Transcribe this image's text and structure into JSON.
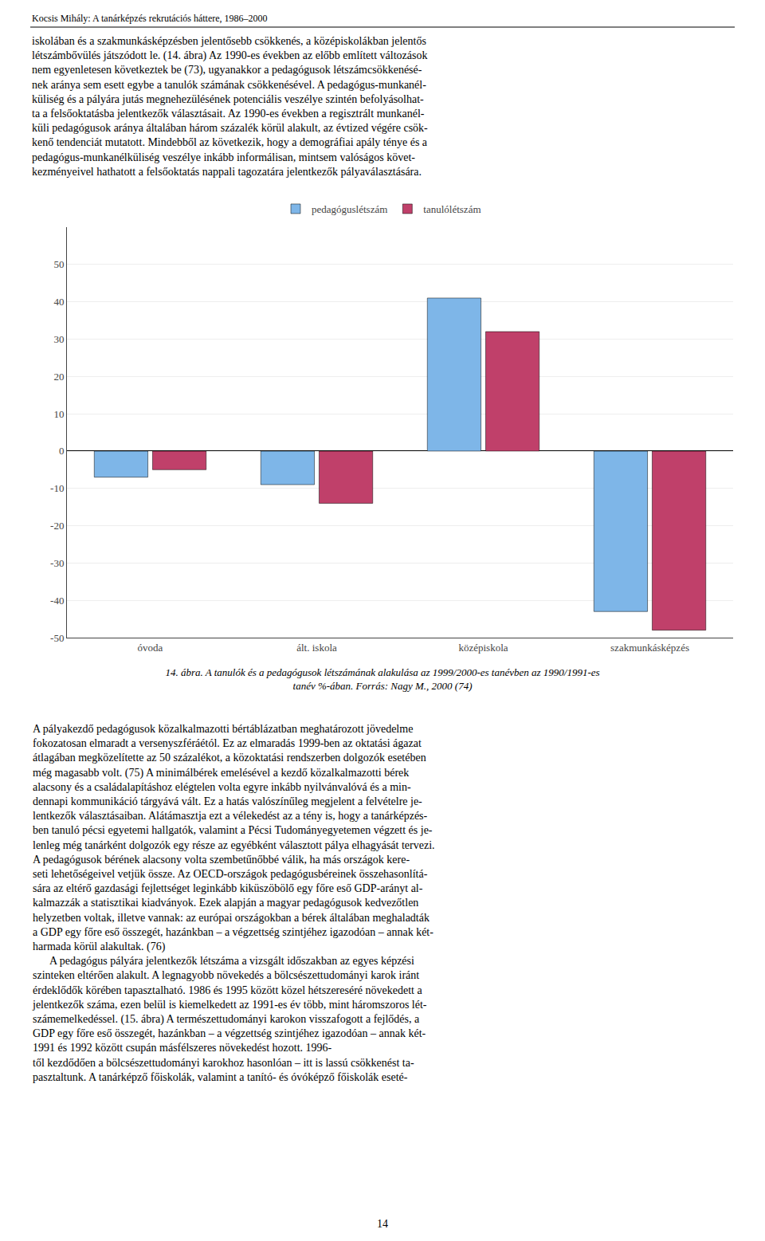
{
  "chart_data": {
    "type": "bar",
    "title": "14. ábra. A tanulók és a pedagógusok létszámának alakulása az 1999/2000-es tanévben az 1990/1991-es\ntanév %-ában. Forrás: Nagy M., 2000 (74)",
    "categories": [
      "óvoda",
      "ált. iskola",
      "középiskola",
      "szakmunkásképzés"
    ],
    "series": [
      {
        "name": "pedagóguslétszám",
        "color": "#7EB6E8",
        "values": [
          -7,
          -9,
          41,
          -43
        ]
      },
      {
        "name": "tanulólétszám",
        "color": "#C0406A",
        "values": [
          -5,
          -14,
          32,
          -48
        ]
      }
    ],
    "ylim": [
      -50,
      60
    ],
    "yticks": [
      -50,
      -40,
      -30,
      -20,
      -10,
      0,
      10,
      20,
      30,
      40,
      50
    ],
    "grid": true,
    "legend": "top",
    "annotations": [
      "Kocsis Mihály: A tanárképzés rekrutációs háttere, 1986–2000",
      "iskolában és a szakmunkásképzésben jelentősebb csökkenés, a középiskolákban jelentős\nlétszámbővülés játszódott le. (14. ábra) Az 1990-es években az előbb említett változások\nnem egyenletesen következtek be (73), ugyanakkor a pedagógusok létszámcsökkenésé-\nnek aránya sem esett egybe a tanulók számának csökkenésével. A pedagógus-munkanél-\nküliség és a pályára jutás megnehezülésének potenciális veszélye szintén befolyásolhat-\nta a felsőoktatásba jelentkezők választásait. Az 1990-es években a regisztrált munkanél-\nküli pedagógusok aránya általában három százalék körül alakult, az évtized végére csök-\nkenő tendenciát mutatott. Mindebből az következik, hogy a demográfiai apály ténye és a\npedagógus-munkanélküliség veszélye inkább informálisan, mintsem valóságos követ-\nkezményeivel hathatott a felsőoktatás nappali tagozatára jelentkezők pályaválasztására.",
      "A pályakezdő pedagógusok közalkalmazotti bértáblázatban meghatározott jövedelme\nfokozatosan elmaradt a versenyszféráétól. Ez az elmaradás 1999-ben az oktatási ágazat\nátlagában megközelítette az 50 százalékot, a közoktatási rendszerben dolgozók esetében\nmég magasabb volt. (75) A minimálbérek emelésével a kezdő közalkalmazotti bérek\nalacsony és a családalapításhoz elégtelen volta egyre inkább nyilvánvalóvá és a min-\ndennapi kommunikáció tárgyává vált. Ez a hatás valószínűleg megjelent a felvételre je-\nlentkezők választásaiban. Alátámasztja ezt a vélekedést az a tény is, hogy a tanárképzés-\nben tanuló pécsi egyetemi hallgatók, valamint a Pécsi Tudományegyetemen végzett és je-\nlenleg még tanárként dolgozók egy része az egyébként választott pálya elhagyását tervezi.\nA pedagógusok bérének alacsony volta szembetűnőbbé válik, ha más országok kere-\nseti lehetőségeivel vetjük össze. Az OECD-országok pedagógusbéreinek összehasonlítá-\nsára az eltérő gazdasági fejlettséget leginkább kiküszöbölő egy főre eső GDP-arányt al-\nkalmazzák a statisztikai kiadványok. Ezek alapján a magyar pedagógusok kedvezőtlen\nhelyzetben voltak, illetve vannak: az európai országokban a bérek általában meghaladták\na GDP egy főre eső összegét, hazánkban – a végzettség szintjéhez igazodóan – annak két-\nharmada körül alakultak. (76)\n      A pedagógus pályára jelentkezők létszáma a vizsgált időszakban az egyes képzési\nszinteken eltérően alakult. A legnagyobb növekedés a bölcsészettudományi karok iránt\nérdeklődők körében tapasztalható. 1986 és 1995 között közel hétszereséré növekedett a\njelentkezők száma, ezen belül is kiemelkedett az 1991-es év több, mint háromszoros lét-\nszámemelkedéssel. (15. ábra) A természettudományi karokon visszafogott a fejlődés, a\nGDP egy főre eső összegét, hazánkban – a végzettség szintjéhez igazodóan – annak két-\n1991 és 1992 között csupán másfélszeres növekedést hozott. 1996-\ntől kezdődően a bölcsészettudományi karokhoz hasonlóan – itt is lassú csökkenést ta-\npasztaltunk. A tanárképző főiskolák, valamint a tanító- és óvóképző főiskolák eseté-",
      "14"
    ]
  }
}
